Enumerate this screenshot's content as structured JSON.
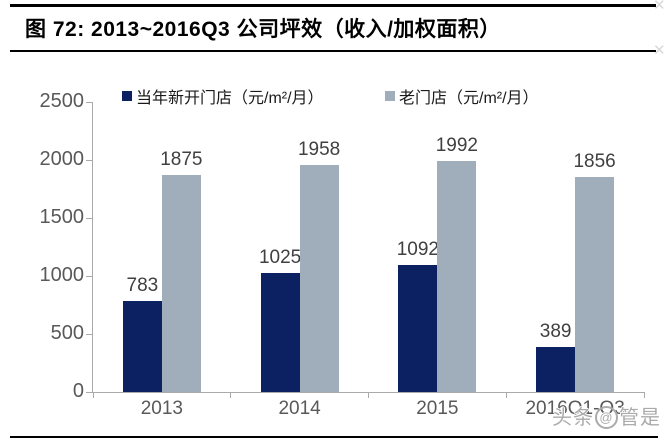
{
  "figure": {
    "title": "图 72:  2013~2016Q3 公司坪效（收入/加权面积）"
  },
  "watermark": {
    "left": "头条",
    "at": "@",
    "right": "管是"
  },
  "chart_data": {
    "type": "bar",
    "categories": [
      "2013",
      "2014",
      "2015",
      "2016Q1-Q3"
    ],
    "series": [
      {
        "name": "当年新开门店（元/m²/月）",
        "color": "#0b2161",
        "values": [
          783,
          1025,
          1092,
          389
        ]
      },
      {
        "name": "老门店（元/m²/月）",
        "color": "#a0aebc",
        "values": [
          1875,
          1958,
          1992,
          1856
        ]
      }
    ],
    "title": "",
    "xlabel": "",
    "ylabel": "",
    "ylim": [
      0,
      2500
    ],
    "yticks": [
      0,
      500,
      1000,
      1500,
      2000,
      2500
    ],
    "grid": false,
    "legend_position": "top",
    "axis_color": "#aaaaaa",
    "tick_label_color": "#595959",
    "data_label_color": "#404040"
  }
}
